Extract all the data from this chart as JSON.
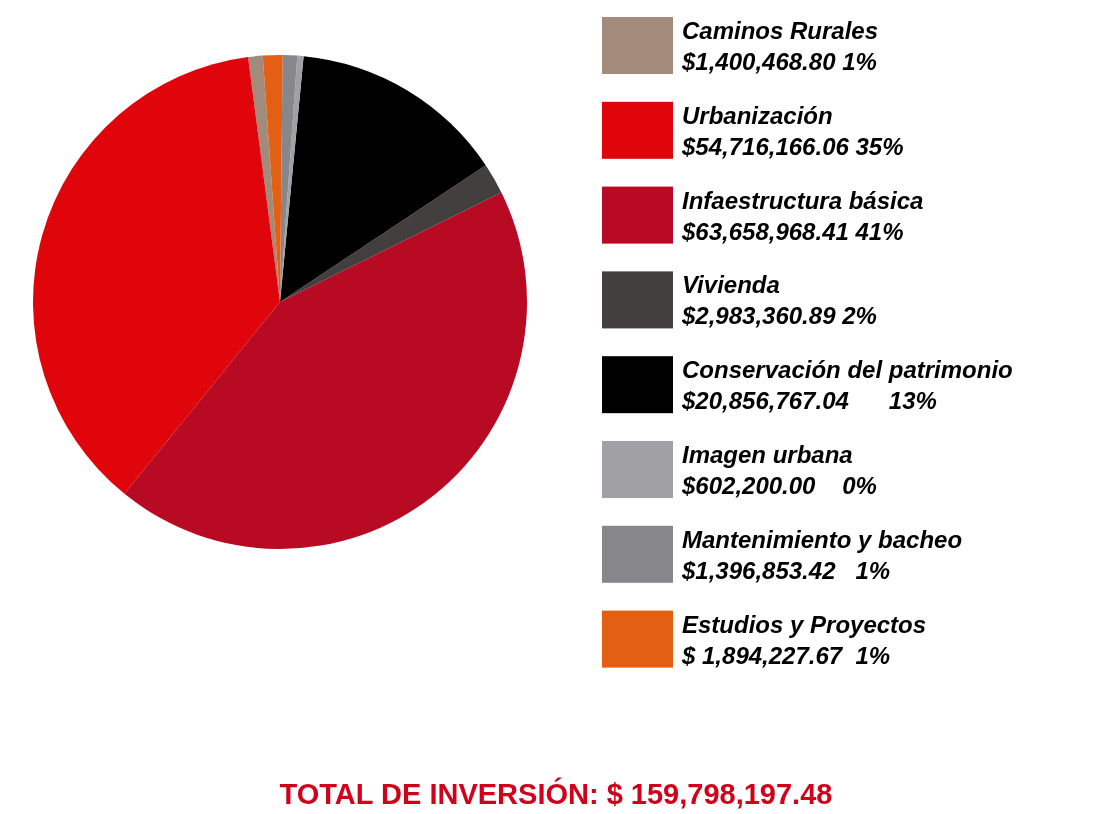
{
  "chart_data": {
    "type": "pie",
    "categories": [
      "Caminos Rurales",
      "Urbanización",
      "Infaestructura básica",
      "Vivienda",
      "Conservación del patrimonio",
      "Imagen urbana",
      "Mantenimiento y bacheo",
      "Estudios y Proyectos"
    ],
    "values": [
      1400468.8,
      54716166.06,
      63658968.41,
      2983360.89,
      20856767.04,
      602200.0,
      1396853.42,
      1894227.67
    ],
    "value_labels": [
      "$1,400,468.80 1%",
      "$54,716,166.06 35%",
      "$63,658,968.41 41%",
      "$2,983,360.89 2%",
      "$20,856,767.04      13%",
      "$602,200.00    0%",
      "$1,396,853.42   1%",
      "$ 1,894,227.67  1%"
    ],
    "colors": [
      "#a38b7b",
      "#e0040b",
      "#b90a24",
      "#433f3f",
      "#000000",
      "#a1a0a4",
      "#87868b",
      "#e35f14"
    ],
    "legend": "right",
    "annotations": [
      "TOTAL DE INVERSIÓN: $ 159,798,197.48"
    ]
  }
}
